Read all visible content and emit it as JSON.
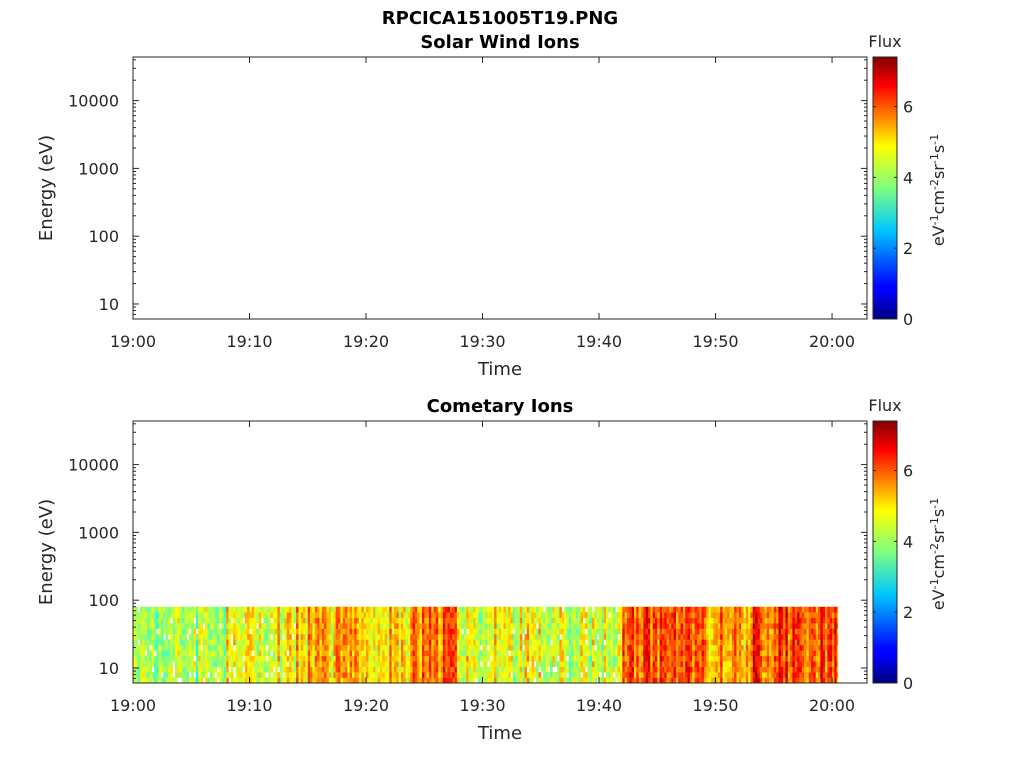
{
  "figure_title": "RPCICA151005T19.PNG",
  "colors": {
    "axis": "#262626",
    "background": "#ffffff"
  },
  "chart_data": [
    {
      "type": "heatmap",
      "title": "Solar Wind Ions",
      "xlabel": "Time",
      "ylabel": "Energy (eV)",
      "x_ticks": [
        "19:00",
        "19:10",
        "19:20",
        "19:30",
        "19:40",
        "19:50",
        "20:00"
      ],
      "xlim": [
        "19:00",
        "20:03"
      ],
      "y_scale": "log",
      "y_ticks": [
        {
          "value": 10,
          "label": "10"
        },
        {
          "value": 100,
          "label": "100"
        },
        {
          "value": 1000,
          "label": "1000"
        },
        {
          "value": 10000,
          "label": "10000"
        }
      ],
      "ylim": [
        6,
        44000
      ],
      "colorbar": {
        "title": "Flux",
        "label": "eV-1cm-2sr-1s-1",
        "colormap": "jet",
        "ticks": [
          0,
          2,
          4,
          6
        ],
        "range": [
          0,
          7.4
        ]
      },
      "data": "empty"
    },
    {
      "type": "heatmap",
      "title": "Cometary Ions",
      "xlabel": "Time",
      "ylabel": "Energy (eV)",
      "x_ticks": [
        "19:00",
        "19:10",
        "19:20",
        "19:30",
        "19:40",
        "19:50",
        "20:00"
      ],
      "xlim": [
        "19:00",
        "20:03"
      ],
      "y_scale": "log",
      "y_ticks": [
        {
          "value": 10,
          "label": "10"
        },
        {
          "value": 100,
          "label": "100"
        },
        {
          "value": 1000,
          "label": "1000"
        },
        {
          "value": 10000,
          "label": "10000"
        }
      ],
      "ylim": [
        6,
        44000
      ],
      "colorbar": {
        "title": "Flux",
        "label": "eV-1cm-2sr-1s-1",
        "colormap": "jet",
        "ticks": [
          0,
          2,
          4,
          6
        ],
        "range": [
          0,
          7.4
        ]
      },
      "energy_range": [
        6,
        80
      ],
      "time_range": [
        "19:00",
        "20:00:30"
      ],
      "flux_segments": [
        {
          "start": "19:00",
          "end": "19:08",
          "mean_flux": 4.0
        },
        {
          "start": "19:08",
          "end": "19:14",
          "mean_flux": 4.6
        },
        {
          "start": "19:14",
          "end": "19:24",
          "mean_flux": 5.0
        },
        {
          "start": "19:24",
          "end": "19:28",
          "mean_flux": 5.5
        },
        {
          "start": "19:28",
          "end": "19:36",
          "mean_flux": 4.5
        },
        {
          "start": "19:36",
          "end": "19:42",
          "mean_flux": 4.3
        },
        {
          "start": "19:42",
          "end": "19:49",
          "mean_flux": 6.0
        },
        {
          "start": "19:49",
          "end": "19:53",
          "mean_flux": 5.4
        },
        {
          "start": "19:53",
          "end": "20:00:30",
          "mean_flux": 6.0
        }
      ]
    }
  ]
}
